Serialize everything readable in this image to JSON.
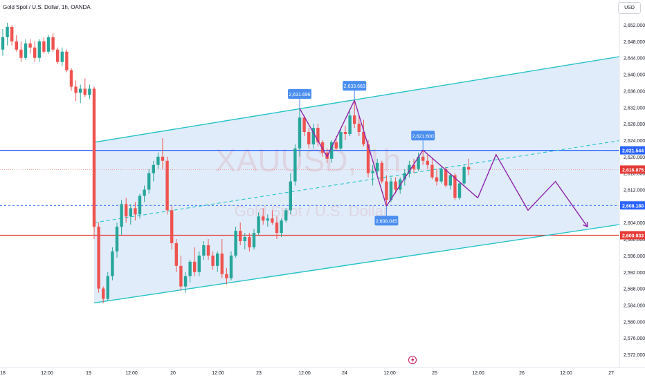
{
  "header": {
    "title": "Gold Spot / U.S. Dollar, 1h, OANDA"
  },
  "scale_button": {
    "label": "USD"
  },
  "watermark": {
    "symbol": "XAUUSD, 1h",
    "description": "Gold Spot / U.S. Dollar"
  },
  "colors": {
    "up": "#26a69a",
    "down": "#ef5350",
    "channel": "#22c3c8",
    "channel_fill": "#dbe9f9",
    "h_blue": "#2962ff",
    "h_red": "#e53935",
    "projection": "#8e24aa",
    "callout": "#4a8ef0",
    "text": "#131722"
  },
  "chart_data": {
    "type": "candlestick",
    "title": "Gold Spot / U.S. Dollar, 1h, OANDA",
    "ylim": [
      2570,
      2654
    ],
    "y_ticks": [
      "2,652.000",
      "2,648.000",
      "2,644.000",
      "2,640.000",
      "2,636.000",
      "2,632.000",
      "2,628.000",
      "2,624.000",
      "2,620.000",
      "2,616.000",
      "2,612.000",
      "2,608.000",
      "2,604.000",
      "2,600.000",
      "2,596.000",
      "2,592.000",
      "2,588.000",
      "2,584.000",
      "2,580.000",
      "2,576.000",
      "2,572.000"
    ],
    "x_ticks": [
      "18",
      "12:00",
      "19",
      "12:00",
      "20",
      "12:00",
      "23",
      "12:00",
      "24",
      "12:00",
      "25",
      "12:00",
      "26",
      "12:00",
      "27"
    ],
    "candles": [
      [
        2646.0,
        2651.0,
        2644.5,
        2649.0
      ],
      [
        2649.0,
        2652.5,
        2647.0,
        2651.5
      ],
      [
        2651.5,
        2652.0,
        2647.0,
        2648.0
      ],
      [
        2648.0,
        2649.5,
        2645.5,
        2646.0
      ],
      [
        2646.0,
        2648.0,
        2643.0,
        2644.0
      ],
      [
        2644.0,
        2648.5,
        2643.5,
        2647.5
      ],
      [
        2647.5,
        2648.5,
        2645.0,
        2646.5
      ],
      [
        2646.5,
        2648.0,
        2643.0,
        2644.0
      ],
      [
        2644.0,
        2648.5,
        2643.0,
        2648.0
      ],
      [
        2648.0,
        2649.0,
        2645.0,
        2645.5
      ],
      [
        2645.5,
        2649.5,
        2645.0,
        2649.0
      ],
      [
        2649.0,
        2650.0,
        2645.5,
        2646.0
      ],
      [
        2646.0,
        2646.5,
        2642.5,
        2643.0
      ],
      [
        2643.0,
        2646.5,
        2642.0,
        2645.5
      ],
      [
        2645.5,
        2646.0,
        2640.5,
        2641.0
      ],
      [
        2641.0,
        2641.5,
        2636.0,
        2637.0
      ],
      [
        2637.0,
        2638.5,
        2633.5,
        2635.5
      ],
      [
        2635.5,
        2637.5,
        2633.0,
        2636.5
      ],
      [
        2636.5,
        2639.0,
        2634.5,
        2635.0
      ],
      [
        2635.0,
        2637.5,
        2634.0,
        2636.5
      ],
      [
        2636.5,
        2637.0,
        2600.0,
        2603.0
      ],
      [
        2603.0,
        2604.0,
        2587.0,
        2588.0
      ],
      [
        2588.0,
        2588.5,
        2584.5,
        2585.5
      ],
      [
        2585.5,
        2592.0,
        2585.0,
        2591.0
      ],
      [
        2591.0,
        2598.0,
        2590.0,
        2597.0
      ],
      [
        2597.0,
        2604.0,
        2595.5,
        2603.0
      ],
      [
        2603.0,
        2609.5,
        2601.0,
        2608.5
      ],
      [
        2608.5,
        2610.0,
        2604.0,
        2605.5
      ],
      [
        2605.5,
        2608.5,
        2603.5,
        2607.5
      ],
      [
        2607.5,
        2609.0,
        2604.5,
        2606.0
      ],
      [
        2606.0,
        2611.0,
        2605.0,
        2610.5
      ],
      [
        2610.5,
        2613.0,
        2609.0,
        2612.0
      ],
      [
        2612.0,
        2617.0,
        2611.0,
        2616.0
      ],
      [
        2616.0,
        2619.0,
        2614.0,
        2618.0
      ],
      [
        2618.0,
        2621.0,
        2617.0,
        2620.0
      ],
      [
        2620.0,
        2624.5,
        2617.0,
        2619.0
      ],
      [
        2619.0,
        2620.0,
        2606.0,
        2607.0
      ],
      [
        2607.0,
        2608.0,
        2597.5,
        2599.0
      ],
      [
        2599.0,
        2600.0,
        2592.0,
        2593.5
      ],
      [
        2593.5,
        2596.0,
        2587.5,
        2588.5
      ],
      [
        2588.5,
        2592.0,
        2587.0,
        2591.0
      ],
      [
        2591.0,
        2595.0,
        2589.5,
        2594.5
      ],
      [
        2594.5,
        2598.0,
        2591.0,
        2592.0
      ],
      [
        2592.0,
        2597.0,
        2591.0,
        2596.0
      ],
      [
        2596.0,
        2599.5,
        2595.0,
        2598.5
      ],
      [
        2598.5,
        2600.0,
        2595.0,
        2596.0
      ],
      [
        2596.0,
        2597.0,
        2592.5,
        2593.5
      ],
      [
        2593.5,
        2597.0,
        2592.0,
        2596.5
      ],
      [
        2596.5,
        2600.0,
        2590.5,
        2591.5
      ],
      [
        2591.5,
        2593.0,
        2589.0,
        2590.5
      ],
      [
        2590.5,
        2597.0,
        2590.0,
        2596.0
      ],
      [
        2596.0,
        2603.0,
        2595.5,
        2602.0
      ],
      [
        2602.0,
        2604.0,
        2598.5,
        2599.5
      ],
      [
        2599.5,
        2601.5,
        2597.5,
        2600.5
      ],
      [
        2600.5,
        2601.5,
        2597.0,
        2598.0
      ],
      [
        2598.0,
        2602.5,
        2597.5,
        2601.5
      ],
      [
        2601.5,
        2606.5,
        2601.0,
        2605.5
      ],
      [
        2605.5,
        2607.5,
        2603.5,
        2604.5
      ],
      [
        2604.5,
        2606.0,
        2603.0,
        2605.0
      ],
      [
        2605.0,
        2607.0,
        2603.5,
        2604.0
      ],
      [
        2604.0,
        2605.5,
        2600.0,
        2601.5
      ],
      [
        2601.5,
        2605.0,
        2600.5,
        2604.5
      ],
      [
        2604.5,
        2607.5,
        2604.0,
        2607.0
      ],
      [
        2607.0,
        2616.0,
        2606.0,
        2614.0
      ],
      [
        2614.0,
        2623.0,
        2613.0,
        2622.0
      ],
      [
        2622.0,
        2631.7,
        2620.0,
        2629.5
      ],
      [
        2629.5,
        2630.0,
        2625.0,
        2626.0
      ],
      [
        2626.0,
        2627.0,
        2622.0,
        2623.0
      ],
      [
        2623.0,
        2628.0,
        2622.0,
        2627.0
      ],
      [
        2627.0,
        2628.0,
        2622.5,
        2623.5
      ],
      [
        2623.5,
        2624.0,
        2620.0,
        2621.0
      ],
      [
        2621.0,
        2622.0,
        2618.5,
        2619.5
      ],
      [
        2619.5,
        2624.0,
        2618.5,
        2623.5
      ],
      [
        2623.5,
        2625.0,
        2621.5,
        2622.0
      ],
      [
        2622.0,
        2627.0,
        2621.5,
        2626.0
      ],
      [
        2626.0,
        2627.5,
        2624.0,
        2625.5
      ],
      [
        2625.5,
        2631.0,
        2625.0,
        2630.0
      ],
      [
        2630.0,
        2633.7,
        2627.0,
        2628.0
      ],
      [
        2628.0,
        2630.0,
        2625.0,
        2626.0
      ],
      [
        2626.0,
        2629.0,
        2622.5,
        2623.0
      ],
      [
        2623.0,
        2624.0,
        2615.0,
        2616.0
      ],
      [
        2616.0,
        2618.0,
        2613.0,
        2616.5
      ],
      [
        2616.5,
        2619.5,
        2615.5,
        2618.5
      ],
      [
        2618.5,
        2619.0,
        2613.5,
        2614.0
      ],
      [
        2614.0,
        2615.5,
        2608.0,
        2609.5
      ],
      [
        2609.5,
        2615.0,
        2609.0,
        2614.0
      ],
      [
        2614.0,
        2615.0,
        2611.0,
        2612.0
      ],
      [
        2612.0,
        2615.0,
        2611.0,
        2614.5
      ],
      [
        2614.5,
        2617.0,
        2613.0,
        2616.0
      ],
      [
        2616.0,
        2619.0,
        2615.0,
        2618.0
      ],
      [
        2618.0,
        2619.5,
        2616.0,
        2617.0
      ],
      [
        2617.0,
        2621.0,
        2616.5,
        2620.0
      ],
      [
        2620.0,
        2621.6,
        2618.0,
        2619.0
      ],
      [
        2619.0,
        2620.5,
        2617.0,
        2618.0
      ],
      [
        2618.0,
        2619.5,
        2614.5,
        2615.0
      ],
      [
        2615.0,
        2617.0,
        2613.0,
        2614.0
      ],
      [
        2614.0,
        2617.5,
        2613.5,
        2617.0
      ],
      [
        2617.0,
        2617.5,
        2612.5,
        2613.0
      ],
      [
        2613.0,
        2616.0,
        2612.0,
        2615.5
      ],
      [
        2615.5,
        2616.0,
        2609.5,
        2610.0
      ],
      [
        2610.0,
        2614.0,
        2609.5,
        2613.5
      ],
      [
        2613.5,
        2618.0,
        2613.0,
        2617.5
      ],
      [
        2617.5,
        2619.5,
        2615.5,
        2616.9
      ]
    ],
    "annotations": [
      {
        "label": "2,631.696",
        "x": 65,
        "y": 2631.7,
        "position": "above"
      },
      {
        "label": "2,633.663",
        "x": 77,
        "y": 2633.7,
        "position": "above"
      },
      {
        "label": "2,621.600",
        "x": 92,
        "y": 2621.6,
        "position": "above"
      },
      {
        "label": "2,608.045",
        "x": 84,
        "y": 2608.0,
        "position": "below"
      }
    ],
    "horizontal_lines": [
      {
        "label": "2,621.544",
        "value": 2621.544,
        "style": "solid",
        "color": "#2962ff"
      },
      {
        "label": "2,616.875",
        "value": 2616.875,
        "style": "dotted",
        "color": "#ef9a9a"
      },
      {
        "label": "2,608.180",
        "value": 2608.18,
        "style": "dashed",
        "color": "#2962ff"
      },
      {
        "label": "2,600.933",
        "value": 2600.933,
        "style": "solid",
        "color": "#e53935"
      }
    ],
    "channel": {
      "upper": [
        [
          20,
          2623.5
        ],
        [
          150,
          2647.0
        ]
      ],
      "lower": [
        [
          20,
          2584.5
        ],
        [
          150,
          2606.0
        ]
      ],
      "middle": [
        [
          20,
          2604.0
        ],
        [
          150,
          2626.5
        ]
      ]
    },
    "zigzag": [
      [
        65,
        2631.7
      ],
      [
        71,
        2620.0
      ],
      [
        77,
        2633.7
      ],
      [
        84,
        2608.0
      ],
      [
        92,
        2621.6
      ],
      [
        104,
        2610.0
      ]
    ],
    "projection": [
      [
        104,
        2610.0
      ],
      [
        108,
        2620.5
      ],
      [
        115,
        2607.0
      ],
      [
        121,
        2614.0
      ],
      [
        128,
        2603.0
      ]
    ]
  }
}
